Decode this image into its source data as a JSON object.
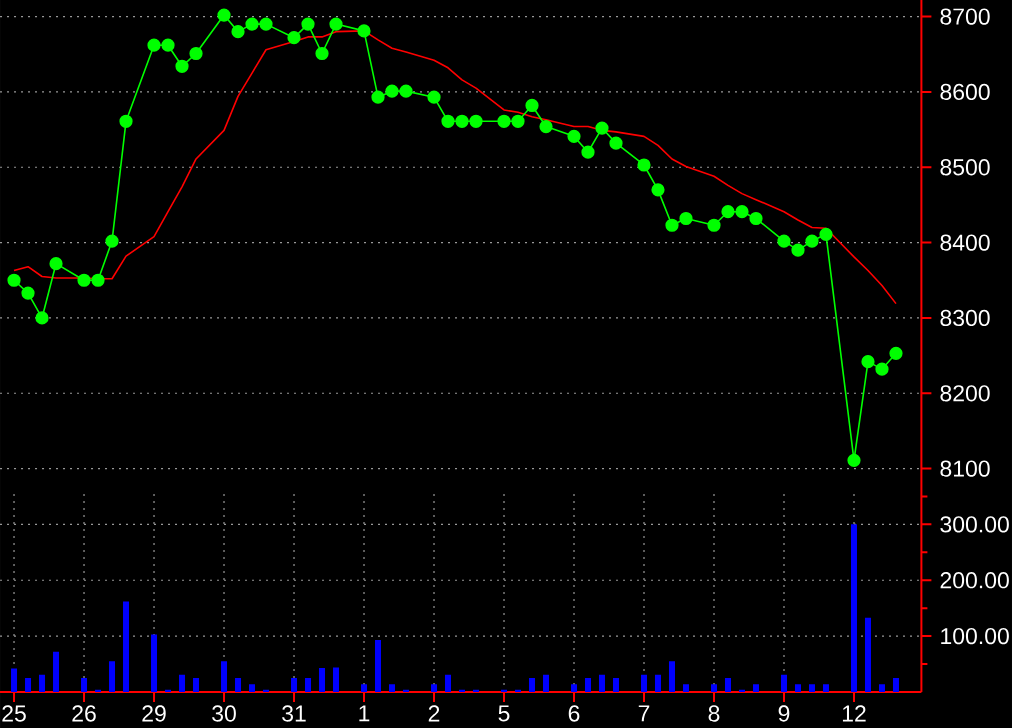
{
  "chart_data": [
    {
      "type": "line",
      "categories": [
        "25",
        null,
        null,
        null,
        null,
        "26",
        null,
        null,
        null,
        null,
        "29",
        null,
        null,
        null,
        null,
        "30",
        null,
        null,
        null,
        null,
        "31",
        null,
        null,
        null,
        null,
        "1",
        null,
        null,
        null,
        null,
        "2",
        null,
        null,
        null,
        null,
        "5",
        null,
        null,
        null,
        null,
        "6",
        null,
        null,
        null,
        null,
        "7",
        null,
        null,
        null,
        null,
        "8",
        null,
        null,
        null,
        null,
        "9",
        null,
        null,
        null,
        null,
        "12",
        null,
        null,
        null,
        null
      ],
      "series": [
        {
          "color": "#ff0000",
          "marker": "none",
          "values": [
            8363,
            8368,
            8355,
            8353,
            null,
            8353,
            8352,
            8352,
            8382,
            null,
            8408,
            8441,
            8474,
            8511,
            null,
            8549,
            8594,
            8625,
            8656,
            null,
            8667,
            8673,
            8673,
            8680,
            null,
            8681,
            8669,
            8658,
            8653,
            null,
            8642,
            8632,
            8616,
            8605,
            null,
            8576,
            8573,
            8567,
            8563,
            null,
            8554,
            8554,
            8549,
            8547,
            null,
            8541,
            8529,
            8511,
            8501,
            null,
            8488,
            8476,
            8465,
            8457,
            null,
            8441,
            8430,
            8420,
            8419,
            null,
            8381,
            8363,
            8343,
            8319,
            null
          ]
        },
        {
          "color": "#00ff00",
          "marker": "circle",
          "values": [
            8350,
            8333,
            8300,
            8372,
            null,
            8350,
            8350,
            8402,
            8561,
            null,
            8662,
            8662,
            8634,
            8651,
            null,
            8702,
            8680,
            8690,
            8690,
            null,
            8672,
            8690,
            8651,
            8690,
            null,
            8681,
            8593,
            8601,
            8601,
            null,
            8593,
            8561,
            8561,
            8561,
            null,
            8561,
            8561,
            8582,
            8554,
            null,
            8541,
            8520,
            8552,
            8532,
            null,
            8503,
            8470,
            8423,
            8432,
            null,
            8423,
            8441,
            8441,
            8432,
            null,
            8402,
            8390,
            8402,
            8411,
            null,
            8111,
            8242,
            8232,
            8253,
            null
          ]
        }
      ],
      "ylim": [
        8069,
        8722
      ],
      "yticks": [
        8100,
        8200,
        8300,
        8400,
        8500,
        8600,
        8700
      ],
      "grid": true,
      "tick_labels": "y"
    },
    {
      "type": "bar",
      "categories": [
        "25",
        null,
        null,
        null,
        null,
        "26",
        null,
        null,
        null,
        null,
        "29",
        null,
        null,
        null,
        null,
        "30",
        null,
        null,
        null,
        null,
        "31",
        null,
        null,
        null,
        null,
        "1",
        null,
        null,
        null,
        null,
        "2",
        null,
        null,
        null,
        null,
        "5",
        null,
        null,
        null,
        null,
        "6",
        null,
        null,
        null,
        null,
        "7",
        null,
        null,
        null,
        null,
        "8",
        null,
        null,
        null,
        null,
        "9",
        null,
        null,
        null,
        null,
        "12",
        null,
        null,
        null,
        null
      ],
      "color": "#0000ff",
      "values": [
        42,
        25,
        31,
        72,
        null,
        25,
        4,
        55,
        162,
        null,
        103,
        4,
        31,
        25,
        null,
        55,
        25,
        14,
        4,
        null,
        25,
        25,
        43,
        44,
        null,
        14,
        93,
        14,
        4,
        null,
        14,
        31,
        4,
        4,
        null,
        4,
        4,
        25,
        31,
        null,
        14,
        25,
        31,
        25,
        null,
        31,
        31,
        55,
        14,
        null,
        14,
        25,
        4,
        14,
        null,
        31,
        14,
        14,
        14,
        null,
        300,
        133,
        14,
        25,
        null
      ],
      "ylim": [
        0,
        358
      ],
      "yticks": [
        {
          "value": 50,
          "label": null
        },
        {
          "value": 100,
          "label": "100.00"
        },
        {
          "value": 150,
          "label": null
        },
        {
          "value": 200,
          "label": "200.00"
        },
        {
          "value": 250,
          "label": null
        },
        {
          "value": 300,
          "label": "300.00"
        },
        {
          "value": 350,
          "label": null
        }
      ],
      "grid": true
    }
  ]
}
